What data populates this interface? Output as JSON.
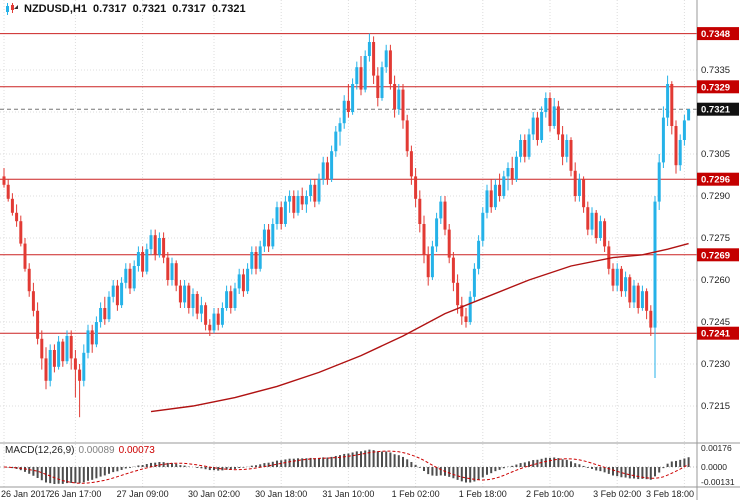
{
  "header": {
    "symbol_period": "NZDUSD,H1",
    "open": "0.7317",
    "high": "0.7321",
    "low": "0.7317",
    "close": "0.7321"
  },
  "colors": {
    "bull": "#25b2e8",
    "bear": "#e23a34",
    "level_line": "#cc2222",
    "level_tag": "#c40000",
    "current_tag": "#111111",
    "ma_line": "#b01212",
    "macd_histogram": "#4d4d4d",
    "macd_signal": "#cc0000",
    "grid": "#dcdcdc",
    "axis_text": "#222222"
  },
  "chart_data": {
    "type": "candlestick",
    "title": "NZDUSD,H1",
    "symbol": "NZDUSD",
    "timeframe": "H1",
    "price_unit": 0.0001,
    "candles": [
      [
        7297,
        7300,
        7293,
        7294
      ],
      [
        7294,
        7296,
        7288,
        7289
      ],
      [
        7289,
        7291,
        7283,
        7284
      ],
      [
        7284,
        7287,
        7279,
        7281
      ],
      [
        7281,
        7283,
        7272,
        7273
      ],
      [
        7273,
        7275,
        7263,
        7264
      ],
      [
        7264,
        7266,
        7254,
        7256
      ],
      [
        7256,
        7259,
        7247,
        7249
      ],
      [
        7249,
        7252,
        7237,
        7239
      ],
      [
        7239,
        7242,
        7228,
        7232
      ],
      [
        7232,
        7236,
        7221,
        7224
      ],
      [
        7224,
        7237,
        7222,
        7235
      ],
      [
        7235,
        7237,
        7227,
        7229
      ],
      [
        7229,
        7240,
        7228,
        7238
      ],
      [
        7238,
        7239,
        7229,
        7231
      ],
      [
        7231,
        7242,
        7230,
        7240
      ],
      [
        7240,
        7242,
        7228,
        7232
      ],
      [
        7232,
        7235,
        7218,
        7228
      ],
      [
        7228,
        7230,
        7211,
        7224
      ],
      [
        7224,
        7237,
        7222,
        7234
      ],
      [
        7234,
        7244,
        7232,
        7242
      ],
      [
        7242,
        7244,
        7234,
        7237
      ],
      [
        7237,
        7247,
        7236,
        7245
      ],
      [
        7245,
        7252,
        7243,
        7250
      ],
      [
        7250,
        7254,
        7244,
        7246
      ],
      [
        7246,
        7256,
        7245,
        7254
      ],
      [
        7254,
        7260,
        7252,
        7258
      ],
      [
        7258,
        7260,
        7249,
        7251
      ],
      [
        7251,
        7261,
        7250,
        7259
      ],
      [
        7259,
        7266,
        7257,
        7264
      ],
      [
        7264,
        7266,
        7255,
        7257
      ],
      [
        7257,
        7267,
        7256,
        7265
      ],
      [
        7265,
        7272,
        7263,
        7270
      ],
      [
        7270,
        7272,
        7261,
        7263
      ],
      [
        7263,
        7273,
        7262,
        7271
      ],
      [
        7271,
        7278,
        7269,
        7276
      ],
      [
        7276,
        7278,
        7267,
        7269
      ],
      [
        7269,
        7277,
        7268,
        7275
      ],
      [
        7275,
        7277,
        7266,
        7268
      ],
      [
        7268,
        7270,
        7258,
        7260
      ],
      [
        7260,
        7268,
        7258,
        7266
      ],
      [
        7266,
        7267,
        7256,
        7258
      ],
      [
        7258,
        7260,
        7250,
        7252
      ],
      [
        7252,
        7260,
        7250,
        7258
      ],
      [
        7258,
        7259,
        7248,
        7250
      ],
      [
        7250,
        7257,
        7247,
        7255
      ],
      [
        7255,
        7256,
        7246,
        7248
      ],
      [
        7248,
        7254,
        7245,
        7251
      ],
      [
        7251,
        7252,
        7242,
        7244
      ],
      [
        7244,
        7246,
        7240,
        7242
      ],
      [
        7242,
        7250,
        7241,
        7248
      ],
      [
        7248,
        7250,
        7242,
        7244
      ],
      [
        7244,
        7252,
        7243,
        7250
      ],
      [
        7250,
        7258,
        7249,
        7256
      ],
      [
        7256,
        7258,
        7248,
        7250
      ],
      [
        7250,
        7259,
        7249,
        7257
      ],
      [
        7257,
        7264,
        7255,
        7262
      ],
      [
        7262,
        7264,
        7254,
        7256
      ],
      [
        7256,
        7266,
        7255,
        7264
      ],
      [
        7264,
        7272,
        7262,
        7270
      ],
      [
        7270,
        7272,
        7262,
        7264
      ],
      [
        7264,
        7274,
        7263,
        7272
      ],
      [
        7272,
        7280,
        7270,
        7278
      ],
      [
        7278,
        7280,
        7270,
        7272
      ],
      [
        7272,
        7282,
        7271,
        7280
      ],
      [
        7280,
        7288,
        7278,
        7286
      ],
      [
        7286,
        7288,
        7278,
        7280
      ],
      [
        7280,
        7290,
        7279,
        7288
      ],
      [
        7288,
        7292,
        7284,
        7290
      ],
      [
        7290,
        7292,
        7282,
        7284
      ],
      [
        7284,
        7292,
        7283,
        7290
      ],
      [
        7290,
        7293,
        7285,
        7287
      ],
      [
        7287,
        7292,
        7284,
        7290
      ],
      [
        7290,
        7296,
        7288,
        7294
      ],
      [
        7294,
        7296,
        7286,
        7288
      ],
      [
        7288,
        7298,
        7287,
        7296
      ],
      [
        7296,
        7304,
        7294,
        7302
      ],
      [
        7302,
        7304,
        7294,
        7296
      ],
      [
        7296,
        7308,
        7295,
        7306
      ],
      [
        7306,
        7315,
        7304,
        7313
      ],
      [
        7313,
        7318,
        7308,
        7316
      ],
      [
        7316,
        7326,
        7314,
        7324
      ],
      [
        7324,
        7330,
        7318,
        7320
      ],
      [
        7320,
        7332,
        7319,
        7330
      ],
      [
        7330,
        7338,
        7328,
        7336
      ],
      [
        7336,
        7340,
        7326,
        7328
      ],
      [
        7328,
        7342,
        7327,
        7340
      ],
      [
        7340,
        7348,
        7338,
        7345
      ],
      [
        7345,
        7347,
        7330,
        7333
      ],
      [
        7333,
        7336,
        7322,
        7325
      ],
      [
        7325,
        7338,
        7324,
        7336
      ],
      [
        7336,
        7344,
        7334,
        7342
      ],
      [
        7342,
        7344,
        7328,
        7330
      ],
      [
        7330,
        7333,
        7318,
        7321
      ],
      [
        7321,
        7330,
        7319,
        7328
      ],
      [
        7328,
        7330,
        7314,
        7317
      ],
      [
        7317,
        7319,
        7304,
        7306
      ],
      [
        7306,
        7308,
        7294,
        7297
      ],
      [
        7297,
        7300,
        7286,
        7289
      ],
      [
        7289,
        7292,
        7277,
        7280
      ],
      [
        7280,
        7283,
        7266,
        7269
      ],
      [
        7269,
        7272,
        7258,
        7261
      ],
      [
        7261,
        7274,
        7260,
        7272
      ],
      [
        7272,
        7284,
        7270,
        7282
      ],
      [
        7282,
        7290,
        7280,
        7288
      ],
      [
        7288,
        7290,
        7276,
        7278
      ],
      [
        7278,
        7280,
        7266,
        7268
      ],
      [
        7268,
        7270,
        7256,
        7259
      ],
      [
        7259,
        7262,
        7248,
        7251
      ],
      [
        7251,
        7254,
        7244,
        7247
      ],
      [
        7247,
        7250,
        7243,
        7245
      ],
      [
        7245,
        7256,
        7244,
        7254
      ],
      [
        7254,
        7266,
        7252,
        7264
      ],
      [
        7264,
        7276,
        7262,
        7274
      ],
      [
        7274,
        7286,
        7272,
        7284
      ],
      [
        7284,
        7294,
        7282,
        7292
      ],
      [
        7292,
        7296,
        7284,
        7286
      ],
      [
        7286,
        7296,
        7285,
        7294
      ],
      [
        7294,
        7298,
        7288,
        7290
      ],
      [
        7290,
        7299,
        7289,
        7297
      ],
      [
        7297,
        7302,
        7292,
        7300
      ],
      [
        7300,
        7304,
        7294,
        7296
      ],
      [
        7296,
        7306,
        7295,
        7304
      ],
      [
        7304,
        7312,
        7302,
        7310
      ],
      [
        7310,
        7312,
        7302,
        7304
      ],
      [
        7304,
        7314,
        7303,
        7312
      ],
      [
        7312,
        7320,
        7310,
        7318
      ],
      [
        7318,
        7320,
        7308,
        7310
      ],
      [
        7310,
        7322,
        7309,
        7320
      ],
      [
        7320,
        7327,
        7318,
        7325
      ],
      [
        7325,
        7327,
        7313,
        7315
      ],
      [
        7315,
        7325,
        7314,
        7322
      ],
      [
        7322,
        7324,
        7310,
        7312
      ],
      [
        7312,
        7315,
        7301,
        7304
      ],
      [
        7304,
        7312,
        7302,
        7310
      ],
      [
        7310,
        7311,
        7297,
        7299
      ],
      [
        7299,
        7302,
        7288,
        7290
      ],
      [
        7290,
        7298,
        7288,
        7296
      ],
      [
        7296,
        7297,
        7284,
        7286
      ],
      [
        7286,
        7288,
        7276,
        7278
      ],
      [
        7278,
        7286,
        7276,
        7284
      ],
      [
        7284,
        7285,
        7273,
        7275
      ],
      [
        7275,
        7283,
        7274,
        7281
      ],
      [
        7281,
        7282,
        7270,
        7272
      ],
      [
        7272,
        7274,
        7262,
        7264
      ],
      [
        7264,
        7266,
        7256,
        7258
      ],
      [
        7258,
        7266,
        7256,
        7264
      ],
      [
        7264,
        7265,
        7254,
        7256
      ],
      [
        7256,
        7263,
        7254,
        7261
      ],
      [
        7261,
        7262,
        7250,
        7252
      ],
      [
        7252,
        7260,
        7250,
        7258
      ],
      [
        7258,
        7259,
        7248,
        7250
      ],
      [
        7250,
        7258,
        7249,
        7256
      ],
      [
        7256,
        7257,
        7246,
        7249
      ],
      [
        7249,
        7251,
        7240,
        7243
      ],
      [
        7243,
        7290,
        7225,
        7288
      ],
      [
        7288,
        7305,
        7285,
        7302
      ],
      [
        7302,
        7322,
        7300,
        7318
      ],
      [
        7318,
        7333,
        7315,
        7330
      ],
      [
        7330,
        7331,
        7312,
        7315
      ],
      [
        7315,
        7317,
        7298,
        7301
      ],
      [
        7301,
        7312,
        7299,
        7310
      ],
      [
        7310,
        7319,
        7308,
        7317
      ],
      [
        7317,
        7321,
        7317,
        7321
      ]
    ],
    "ma_points": [
      [
        35,
        7213
      ],
      [
        45,
        7215
      ],
      [
        55,
        7218
      ],
      [
        65,
        7222
      ],
      [
        75,
        7227
      ],
      [
        85,
        7233
      ],
      [
        95,
        7240
      ],
      [
        105,
        7248
      ],
      [
        115,
        7254
      ],
      [
        125,
        7260
      ],
      [
        135,
        7265
      ],
      [
        145,
        7268
      ],
      [
        152,
        7269
      ],
      [
        158,
        7271
      ],
      [
        163,
        7273
      ]
    ],
    "levels": [
      {
        "price": 0.7348,
        "label": "0.7348"
      },
      {
        "price": 0.7329,
        "label": "0.7329"
      },
      {
        "price": 0.7296,
        "label": "0.7296"
      },
      {
        "price": 0.7269,
        "label": "0.7269"
      },
      {
        "price": 0.7241,
        "label": "0.7241"
      }
    ],
    "current_price": {
      "price": 0.7321,
      "label": "0.7321"
    },
    "y_axis": {
      "ticks": [
        "0.7335",
        "0.7320",
        "0.7305",
        "0.7290",
        "0.7275",
        "0.7260",
        "0.7245",
        "0.7230",
        "0.7215"
      ]
    },
    "x_axis": {
      "labels": [
        {
          "i": 0,
          "label": "26 Jan 2017"
        },
        {
          "i": 17,
          "label": "26 Jan 17:00"
        },
        {
          "i": 33,
          "label": "27 Jan 09:00"
        },
        {
          "i": 50,
          "label": "30 Jan 02:00"
        },
        {
          "i": 66,
          "label": "30 Jan 18:00"
        },
        {
          "i": 82,
          "label": "31 Jan 10:00"
        },
        {
          "i": 98,
          "label": "1 Feb 02:00"
        },
        {
          "i": 114,
          "label": "1 Feb 18:00"
        },
        {
          "i": 130,
          "label": "2 Feb 10:00"
        },
        {
          "i": 146,
          "label": "3 Feb 02:00"
        },
        {
          "i": 162,
          "label": "3 Feb 18:00"
        }
      ]
    },
    "macd": {
      "label": "MACD(12,26,9)",
      "value_main": "0.00089",
      "value_signal": "0.00073",
      "params": [
        12,
        26,
        9
      ],
      "y_ticks": [
        "0.00176",
        "0.0000",
        "-0.00131"
      ]
    }
  }
}
